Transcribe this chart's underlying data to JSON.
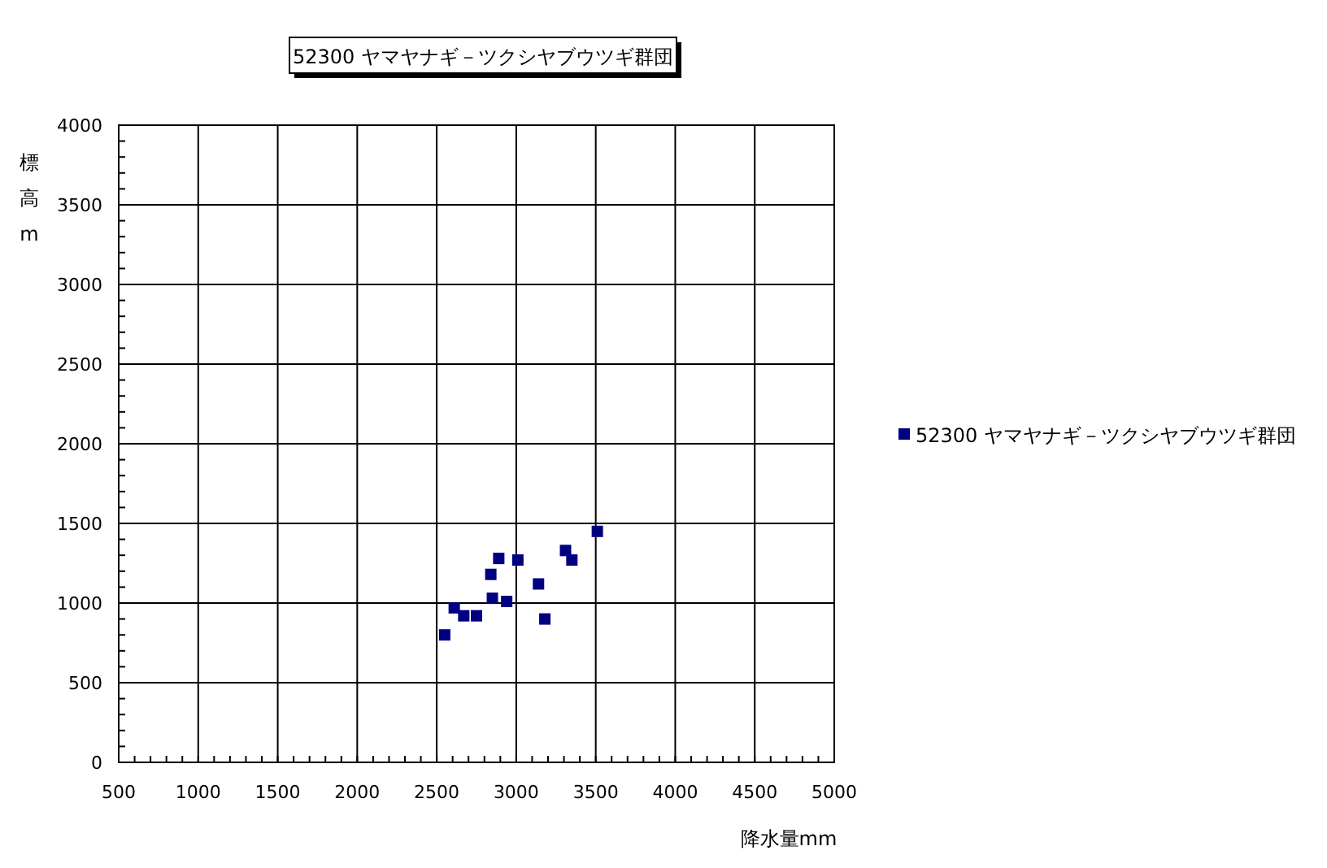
{
  "chart_data": {
    "type": "scatter",
    "title": "52300 ヤマヤナギ－ツクシヤブウツギ群団",
    "xlabel": "降水量mm",
    "ylabel": "標高m",
    "series": [
      {
        "name": "52300 ヤマヤナギ－ツクシヤブウツギ群団",
        "color": "#000080",
        "x": [
          2550,
          2610,
          2670,
          2750,
          2840,
          2850,
          2890,
          2940,
          3010,
          3140,
          3180,
          3310,
          3350,
          3510
        ],
        "values": [
          800,
          970,
          920,
          920,
          1180,
          1030,
          1280,
          1010,
          1270,
          1120,
          900,
          1330,
          1270,
          1450
        ]
      }
    ],
    "xlim": [
      500,
      5000
    ],
    "xticks": [
      500,
      1000,
      1500,
      2000,
      2500,
      3000,
      3500,
      4000,
      4500,
      5000
    ],
    "ylim": [
      0,
      4000
    ],
    "yticks": [
      0,
      500,
      1000,
      1500,
      2000,
      2500,
      3000,
      3500,
      4000
    ],
    "grid": true,
    "legend": "right",
    "marker": "square"
  }
}
